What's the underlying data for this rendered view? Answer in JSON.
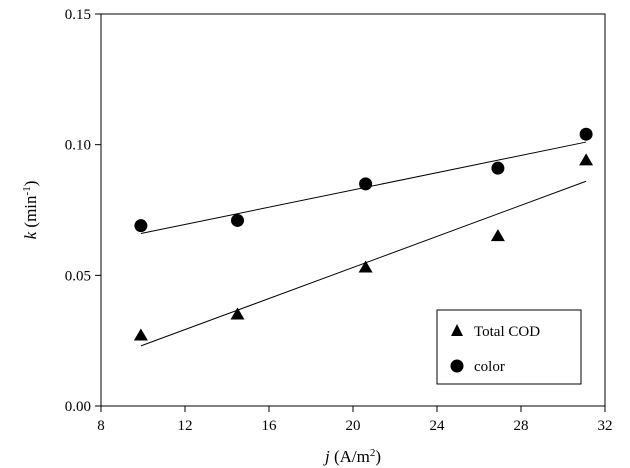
{
  "chart_data": {
    "type": "scatter",
    "xlabel": {
      "italic": "j",
      "rest": " (A/m",
      "sup": "2",
      "end": ")"
    },
    "ylabel": {
      "italic": "k",
      "rest": " (min",
      "sup": "-1",
      "end": ")"
    },
    "xlim": [
      8,
      32
    ],
    "ylim": [
      0.0,
      0.15
    ],
    "xticks": [
      8,
      12,
      16,
      20,
      24,
      28,
      32
    ],
    "xtick_labels": [
      "8",
      "12",
      "16",
      "20",
      "24",
      "28",
      "32"
    ],
    "yticks": [
      0.0,
      0.05,
      0.1,
      0.15
    ],
    "ytick_labels": [
      "0.00",
      "0.05",
      "0.10",
      "0.15"
    ],
    "grid": false,
    "legend_position": "bottom-right",
    "series": [
      {
        "name": "Total COD",
        "marker": "triangle",
        "color": "#000000",
        "x": [
          9.9,
          14.5,
          20.6,
          26.9,
          31.1
        ],
        "y": [
          0.027,
          0.035,
          0.053,
          0.065,
          0.094
        ],
        "fit": {
          "x": [
            9.9,
            31.1
          ],
          "y": [
            0.023,
            0.086
          ]
        }
      },
      {
        "name": "color",
        "marker": "circle",
        "color": "#000000",
        "x": [
          9.9,
          14.5,
          20.6,
          26.9,
          31.1
        ],
        "y": [
          0.069,
          0.071,
          0.085,
          0.091,
          0.104
        ],
        "fit": {
          "x": [
            9.9,
            31.1
          ],
          "y": [
            0.066,
            0.101
          ]
        }
      }
    ]
  }
}
